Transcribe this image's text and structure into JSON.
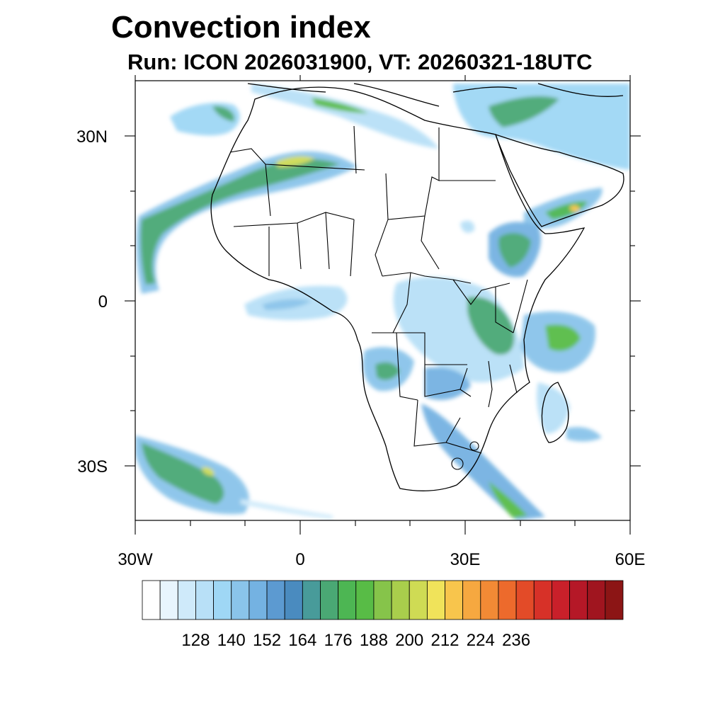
{
  "title": "Convection index",
  "subtitle": "Run: ICON 2026031900,  VT: 20260321-18UTC",
  "map": {
    "region": "Africa",
    "lon_range": [
      -30,
      60
    ],
    "lat_range": [
      -40,
      40
    ],
    "lat_labels": [
      {
        "lat": 30,
        "label": "30N"
      },
      {
        "lat": 0,
        "label": "0"
      },
      {
        "lat": -30,
        "label": "30S"
      }
    ],
    "lon_labels": [
      {
        "lon": -30,
        "label": "30W"
      },
      {
        "lon": 0,
        "label": "0"
      },
      {
        "lon": 30,
        "label": "30E"
      },
      {
        "lon": 60,
        "label": "60E"
      }
    ]
  },
  "colorbar": {
    "colors": [
      "#ffffff",
      "#e8f5fd",
      "#cfeafa",
      "#b8e0f7",
      "#9fd7f5",
      "#8ac4ea",
      "#74b2e2",
      "#5c9ad1",
      "#4a8bbf",
      "#489b9a",
      "#4aa874",
      "#4db653",
      "#58bc46",
      "#86c44a",
      "#a9ce4c",
      "#cfdb54",
      "#f0e35a",
      "#f8c54c",
      "#f6a840",
      "#f28a35",
      "#ed6a2c",
      "#e34b28",
      "#d73128",
      "#c9202a",
      "#b51827",
      "#a0151f",
      "#8c1515"
    ],
    "labels": [
      "128",
      "140",
      "152",
      "164",
      "176",
      "188",
      "200",
      "212",
      "224",
      "236"
    ]
  }
}
